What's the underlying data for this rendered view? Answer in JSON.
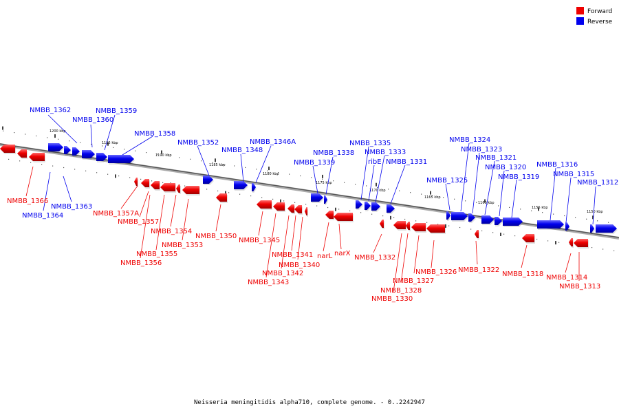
{
  "legend": {
    "forward": {
      "label": "Forward",
      "color": "#ee0000"
    },
    "reverse": {
      "label": "Reverse",
      "color": "#0000ee"
    }
  },
  "caption": "Neisseria meningitidis alpha710, complete genome. - 0..2242947",
  "scale_labels": [
    "1200 kbp",
    "1195 kbp",
    "1190 kbp",
    "1185 kbp",
    "1180 kbp",
    "1175 kbp",
    "1170 kbp",
    "1165 kbp",
    "1160 kbp",
    "1155 kbp",
    "1150 kbp"
  ],
  "genes_reverse": [
    "NMBB_1362",
    "NMBB_1360",
    "NMBB_1359",
    "NMBB_1358",
    "NMBB_1352",
    "NMBB_1348",
    "NMBB_1346A",
    "NMBB_1339",
    "NMBB_1338",
    "NMBB_1335",
    "ribE",
    "NMBB_1333",
    "NMBB_1331",
    "NMBB_1325",
    "NMBB_1324",
    "NMBB_1323",
    "NMBB_1321",
    "NMBB_1320",
    "NMBB_1319",
    "NMBB_1316",
    "NMBB_1315",
    "NMBB_1312",
    "NMBB_1363",
    "NMBB_1364"
  ],
  "genes_forward": [
    "NMBB_1366",
    "NMBB_1357A",
    "NMBB_1357",
    "NMBB_1354",
    "NMBB_1355",
    "NMBB_1356",
    "NMBB_1353",
    "NMBB_1350",
    "NMBB_1345",
    "NMBB_1341",
    "NMBB_1340",
    "NMBB_1342",
    "NMBB_1343",
    "narL",
    "narX",
    "NMBB_1332",
    "NMBB_1326",
    "NMBB_1327",
    "NMBB_1328",
    "NMBB_1330",
    "NMBB_1322",
    "NMBB_1318",
    "NMBB_1314",
    "NMBB_1313"
  ]
}
